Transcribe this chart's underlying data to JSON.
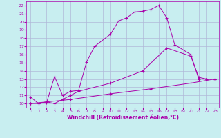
{
  "xlabel": "Windchill (Refroidissement éolien,°C)",
  "bg_color": "#c8eef0",
  "grid_color": "#b0b8d8",
  "line_color": "#aa00aa",
  "xlim": [
    -0.5,
    23.5
  ],
  "ylim": [
    9.5,
    22.5
  ],
  "xticks": [
    0,
    1,
    2,
    3,
    4,
    5,
    6,
    7,
    8,
    9,
    10,
    11,
    12,
    13,
    14,
    15,
    16,
    17,
    18,
    19,
    20,
    21,
    22,
    23
  ],
  "yticks": [
    10,
    11,
    12,
    13,
    14,
    15,
    16,
    17,
    18,
    19,
    20,
    21,
    22
  ],
  "line1_x": [
    0,
    1,
    2,
    3,
    4,
    5,
    6,
    7,
    8,
    10,
    11,
    12,
    13,
    14,
    15,
    16,
    17,
    18,
    20,
    21,
    22,
    23
  ],
  "line1_y": [
    10.8,
    10.0,
    10.1,
    13.3,
    11.0,
    11.5,
    11.6,
    15.1,
    17.0,
    18.5,
    20.1,
    20.5,
    21.2,
    21.3,
    21.5,
    22.0,
    20.5,
    17.2,
    16.0,
    13.0,
    13.0,
    13.0
  ],
  "line2_x": [
    0,
    1,
    2,
    3,
    4,
    5,
    6,
    10,
    14,
    17,
    20,
    21,
    22,
    23
  ],
  "line2_y": [
    10.0,
    10.0,
    10.2,
    10.0,
    10.5,
    11.0,
    11.5,
    12.5,
    14.0,
    16.8,
    15.8,
    13.2,
    13.0,
    13.0
  ],
  "line3_x": [
    0,
    5,
    10,
    15,
    20,
    23
  ],
  "line3_y": [
    10.0,
    10.5,
    11.2,
    11.8,
    12.5,
    13.0
  ]
}
